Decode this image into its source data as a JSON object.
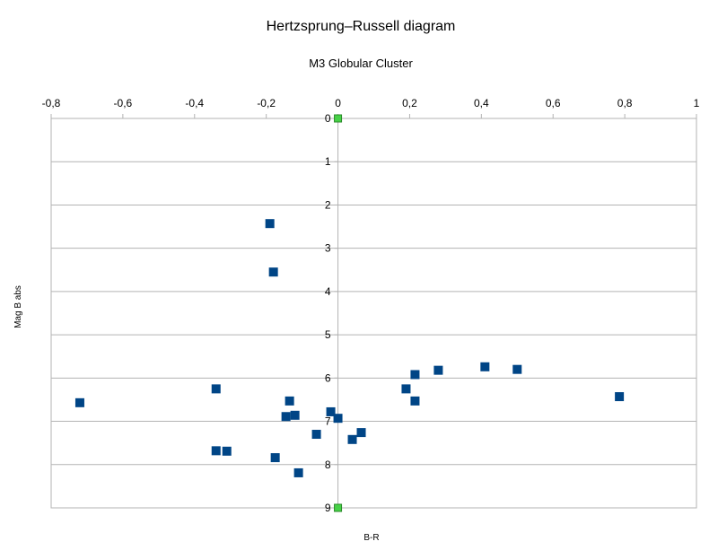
{
  "chart_data": {
    "type": "scatter",
    "title": "Hertzsprung–Russell diagram",
    "subtitle": "M3 Globular Cluster",
    "xlabel": "B-R",
    "ylabel": "Mag B abs",
    "xlim": [
      -0.8,
      1
    ],
    "ylim": [
      0,
      9
    ],
    "y_inverted": true,
    "x_ticks": [
      "-0,8",
      "-0,6",
      "-0,4",
      "-0,2",
      "0",
      "0,2",
      "0,4",
      "0,6",
      "0,8",
      "1"
    ],
    "y_ticks": [
      "0",
      "1",
      "2",
      "3",
      "4",
      "5",
      "6",
      "7",
      "8",
      "9"
    ],
    "grid": "horizontal",
    "legend": "none",
    "series": [
      {
        "color": "#004586",
        "marker": "square",
        "points": [
          {
            "x": -0.19,
            "y": 2.43
          },
          {
            "x": -0.18,
            "y": 3.55
          },
          {
            "x": -0.72,
            "y": 6.57
          },
          {
            "x": -0.34,
            "y": 6.25
          },
          {
            "x": -0.34,
            "y": 7.68
          },
          {
            "x": -0.31,
            "y": 7.69
          },
          {
            "x": -0.175,
            "y": 7.84
          },
          {
            "x": -0.135,
            "y": 6.53
          },
          {
            "x": -0.145,
            "y": 6.89
          },
          {
            "x": -0.12,
            "y": 6.86
          },
          {
            "x": -0.11,
            "y": 8.19
          },
          {
            "x": -0.06,
            "y": 7.3
          },
          {
            "x": -0.02,
            "y": 6.78
          },
          {
            "x": 0.0,
            "y": 6.93
          },
          {
            "x": 0.04,
            "y": 7.42
          },
          {
            "x": 0.065,
            "y": 7.26
          },
          {
            "x": 0.19,
            "y": 6.25
          },
          {
            "x": 0.215,
            "y": 5.92
          },
          {
            "x": 0.215,
            "y": 6.53
          },
          {
            "x": 0.28,
            "y": 5.82
          },
          {
            "x": 0.41,
            "y": 5.74
          },
          {
            "x": 0.5,
            "y": 5.8
          },
          {
            "x": 0.785,
            "y": 6.43
          }
        ]
      },
      {
        "color": "#47d147",
        "marker": "square",
        "points": [
          {
            "x": 0,
            "y": 0
          },
          {
            "x": 0,
            "y": 9
          }
        ]
      }
    ]
  }
}
